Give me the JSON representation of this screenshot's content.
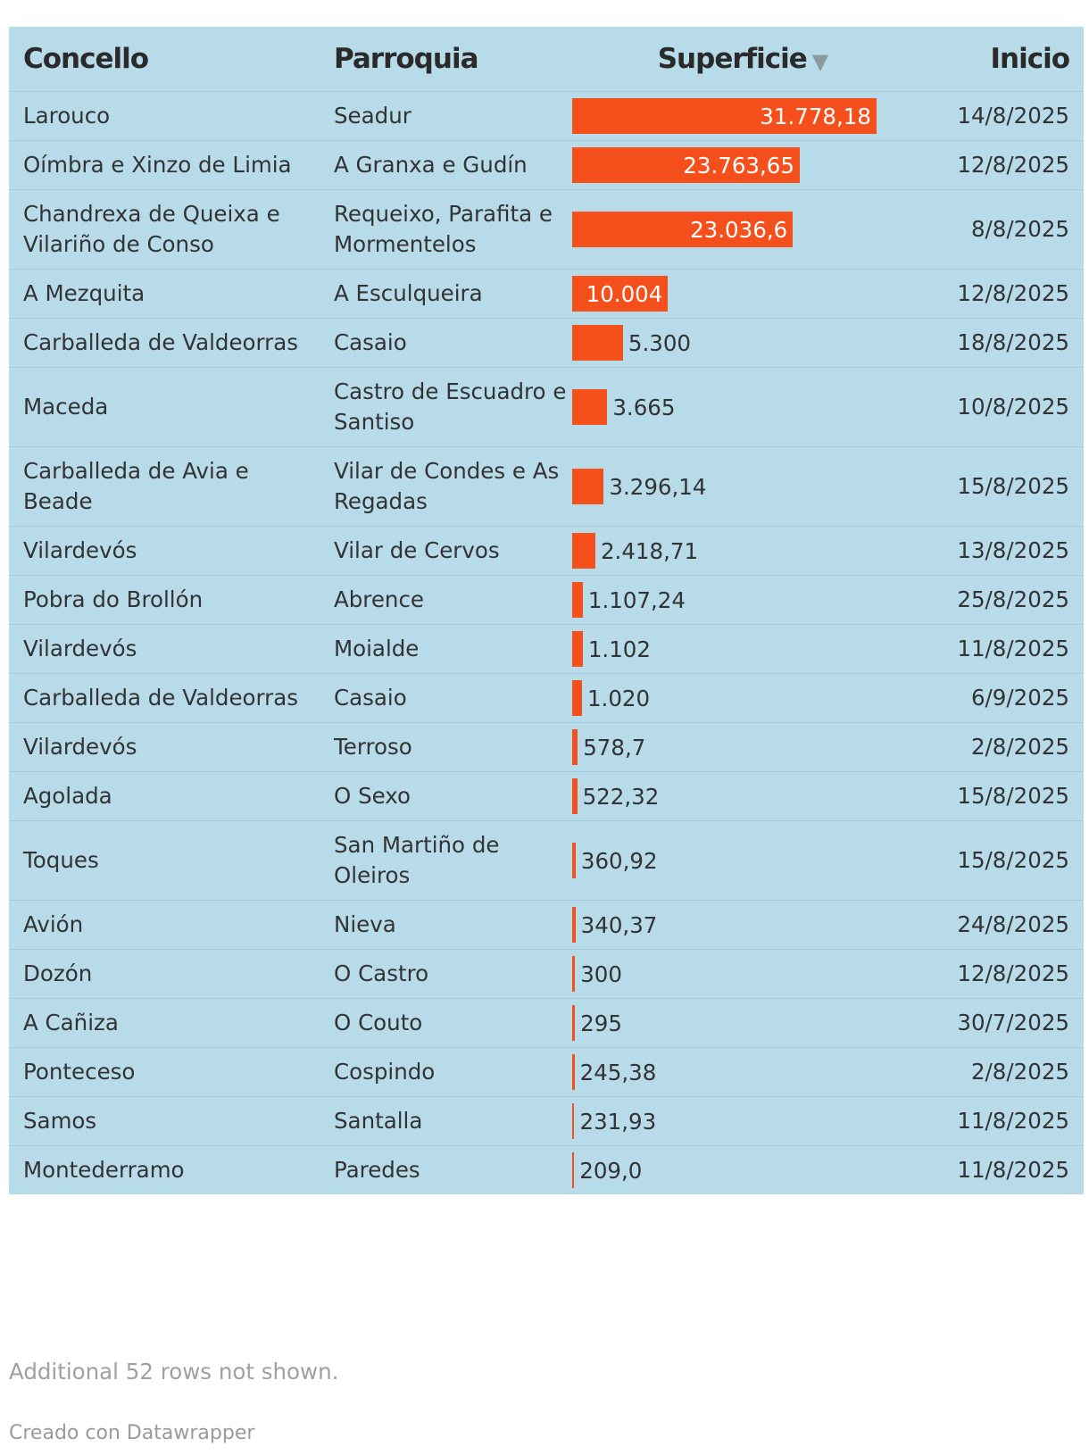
{
  "chart_data": {
    "type": "table",
    "columns": [
      {
        "label": "Concello"
      },
      {
        "label": "Parroquia"
      },
      {
        "label": "Superficie",
        "sort_indicator": "▼"
      },
      {
        "label": "Inicio"
      }
    ],
    "bar_color": "#f54f1c",
    "background_color": "#b8dbea",
    "bar_max": 31778.18,
    "rows": [
      {
        "concello": "Larouco",
        "parroquia": "Seadur",
        "superficie": 31778.18,
        "superficie_label": "31.778,18",
        "inicio": "14/8/2025"
      },
      {
        "concello": "Oímbra e Xinzo de Limia",
        "parroquia": "A Granxa e Gudín",
        "superficie": 23763.65,
        "superficie_label": "23.763,65",
        "inicio": "12/8/2025"
      },
      {
        "concello": "Chandrexa de Queixa e Vilariño de Conso",
        "parroquia": "Requeixo, Parafita e Mormentelos",
        "superficie": 23036.6,
        "superficie_label": "23.036,6",
        "inicio": "8/8/2025"
      },
      {
        "concello": "A Mezquita",
        "parroquia": "A Esculqueira",
        "superficie": 10004,
        "superficie_label": "10.004",
        "inicio": "12/8/2025"
      },
      {
        "concello": "Carballeda de Valdeorras",
        "parroquia": "Casaio",
        "superficie": 5300,
        "superficie_label": "5.300",
        "inicio": "18/8/2025"
      },
      {
        "concello": "Maceda",
        "parroquia": "Castro de Escuadro e Santiso",
        "superficie": 3665,
        "superficie_label": "3.665",
        "inicio": "10/8/2025"
      },
      {
        "concello": "Carballeda de Avia e Beade",
        "parroquia": "Vilar de Condes e As Regadas",
        "superficie": 3296.14,
        "superficie_label": "3.296,14",
        "inicio": "15/8/2025"
      },
      {
        "concello": "Vilardevós",
        "parroquia": "Vilar de Cervos",
        "superficie": 2418.71,
        "superficie_label": "2.418,71",
        "inicio": "13/8/2025"
      },
      {
        "concello": "Pobra do Brollón",
        "parroquia": "Abrence",
        "superficie": 1107.24,
        "superficie_label": "1.107,24",
        "inicio": "25/8/2025"
      },
      {
        "concello": "Vilardevós",
        "parroquia": "Moialde",
        "superficie": 1102,
        "superficie_label": "1.102",
        "inicio": "11/8/2025"
      },
      {
        "concello": "Carballeda de Valdeorras",
        "parroquia": "Casaio",
        "superficie": 1020,
        "superficie_label": "1.020",
        "inicio": "6/9/2025"
      },
      {
        "concello": "Vilardevós",
        "parroquia": "Terroso",
        "superficie": 578.7,
        "superficie_label": "578,7",
        "inicio": "2/8/2025"
      },
      {
        "concello": "Agolada",
        "parroquia": "O Sexo",
        "superficie": 522.32,
        "superficie_label": "522,32",
        "inicio": "15/8/2025"
      },
      {
        "concello": "Toques",
        "parroquia": "San Martiño de Oleiros",
        "superficie": 360.92,
        "superficie_label": "360,92",
        "inicio": "15/8/2025"
      },
      {
        "concello": "Avión",
        "parroquia": "Nieva",
        "superficie": 340.37,
        "superficie_label": "340,37",
        "inicio": "24/8/2025"
      },
      {
        "concello": "Dozón",
        "parroquia": "O Castro",
        "superficie": 300,
        "superficie_label": "300",
        "inicio": "12/8/2025"
      },
      {
        "concello": "A Cañiza",
        "parroquia": "O Couto",
        "superficie": 295,
        "superficie_label": "295",
        "inicio": "30/7/2025"
      },
      {
        "concello": "Ponteceso",
        "parroquia": "Cospindo",
        "superficie": 245.38,
        "superficie_label": "245,38",
        "inicio": "2/8/2025"
      },
      {
        "concello": "Samos",
        "parroquia": "Santalla",
        "superficie": 231.93,
        "superficie_label": "231,93",
        "inicio": "11/8/2025"
      },
      {
        "concello": "Montederramo",
        "parroquia": "Paredes",
        "superficie": 209.0,
        "superficie_label": "209,0",
        "inicio": "11/8/2025"
      }
    ]
  },
  "notes": "Additional 52 rows not shown.",
  "credit": "Creado con Datawrapper"
}
